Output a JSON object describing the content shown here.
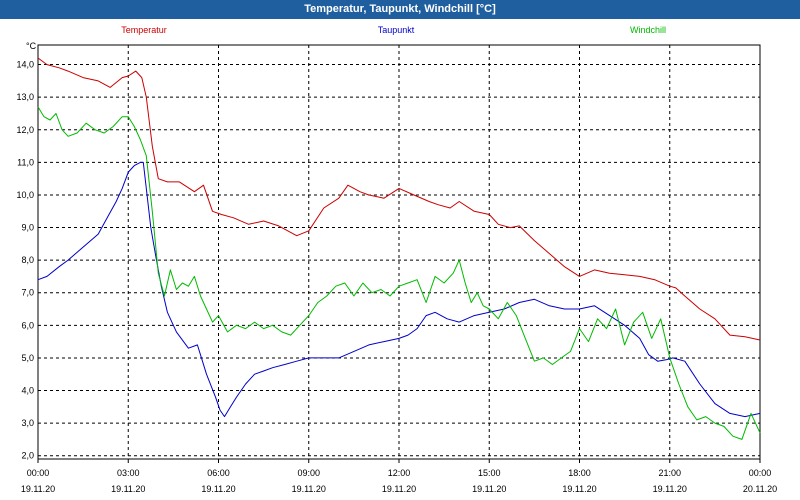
{
  "chart_data": {
    "type": "line",
    "title": "Temperatur, Taupunkt, Windchill [°C]",
    "ylabel": "°C",
    "ylim": [
      1.9,
      14.6
    ],
    "yticks": [
      2.0,
      3.0,
      4.0,
      5.0,
      6.0,
      7.0,
      8.0,
      9.0,
      10.0,
      11.0,
      12.0,
      13.0,
      14.0
    ],
    "ytick_labels": [
      "2,0",
      "3,0",
      "4,0",
      "5,0",
      "6,0",
      "7,0",
      "8,0",
      "9,0",
      "10,0",
      "11,0",
      "12,0",
      "13,0",
      "14,0"
    ],
    "xlim": [
      0,
      24
    ],
    "xticks": [
      {
        "x": 0,
        "time": "00:00",
        "date": "19.11.20"
      },
      {
        "x": 3,
        "time": "03:00",
        "date": "19.11.20"
      },
      {
        "x": 6,
        "time": "06:00",
        "date": "19.11.20"
      },
      {
        "x": 9,
        "time": "09:00",
        "date": "19.11.20"
      },
      {
        "x": 12,
        "time": "12:00",
        "date": "19.11.20"
      },
      {
        "x": 15,
        "time": "15:00",
        "date": "19.11.20"
      },
      {
        "x": 18,
        "time": "18:00",
        "date": "19.11.20"
      },
      {
        "x": 21,
        "time": "21:00",
        "date": "19.11.20"
      },
      {
        "x": 24,
        "time": "00:00",
        "date": "20.11.20"
      }
    ],
    "grid": true,
    "series": [
      {
        "name": "Temperatur",
        "color": "#cc0000",
        "x": [
          0,
          0.3,
          0.7,
          1,
          1.5,
          2,
          2.4,
          2.8,
          3,
          3.25,
          3.45,
          3.6,
          3.8,
          4,
          4.3,
          4.7,
          5.2,
          5.5,
          5.8,
          6.1,
          6.5,
          7,
          7.5,
          8,
          8.3,
          8.6,
          9,
          9.5,
          10,
          10.3,
          10.7,
          11,
          11.5,
          12,
          12.5,
          13,
          13.3,
          13.7,
          14,
          14.5,
          15,
          15.3,
          15.7,
          16,
          16.5,
          17,
          17.5,
          18,
          18.5,
          19,
          19.5,
          20,
          20.5,
          21,
          21.2,
          21.5,
          22,
          22.5,
          23,
          23.5,
          24
        ],
        "y": [
          14.2,
          14.0,
          13.9,
          13.8,
          13.6,
          13.5,
          13.3,
          13.6,
          13.65,
          13.8,
          13.6,
          13.0,
          11.5,
          10.5,
          10.4,
          10.4,
          10.1,
          10.3,
          9.5,
          9.4,
          9.3,
          9.1,
          9.2,
          9.05,
          8.9,
          8.75,
          8.9,
          9.6,
          9.9,
          10.3,
          10.1,
          10.0,
          9.9,
          10.2,
          10.0,
          9.8,
          9.7,
          9.6,
          9.8,
          9.5,
          9.4,
          9.1,
          9.0,
          9.05,
          8.6,
          8.2,
          7.8,
          7.5,
          7.7,
          7.6,
          7.55,
          7.5,
          7.4,
          7.2,
          7.15,
          6.9,
          6.5,
          6.2,
          5.7,
          5.65,
          5.55
        ]
      },
      {
        "name": "Taupunkt",
        "color": "#0000cc",
        "x": [
          0,
          0.3,
          0.7,
          1,
          1.5,
          2,
          2.3,
          2.6,
          2.8,
          3,
          3.2,
          3.4,
          3.5,
          3.6,
          3.75,
          3.9,
          4.1,
          4.3,
          4.6,
          5,
          5.3,
          5.6,
          5.9,
          6.05,
          6.2,
          6.4,
          6.6,
          6.9,
          7.2,
          7.5,
          7.8,
          8.2,
          8.6,
          9,
          9.5,
          10,
          10.5,
          11,
          11.5,
          12,
          12.3,
          12.6,
          12.9,
          13.2,
          13.6,
          14,
          14.5,
          15,
          15.5,
          16,
          16.5,
          17,
          17.5,
          18,
          18.5,
          19,
          19.5,
          20,
          20.3,
          20.6,
          20.9,
          21.1,
          21.5,
          22,
          22.5,
          23,
          23.5,
          24
        ],
        "y": [
          7.4,
          7.5,
          7.8,
          8.0,
          8.4,
          8.8,
          9.3,
          9.8,
          10.2,
          10.7,
          10.9,
          11.0,
          11.0,
          10.2,
          9.0,
          8.2,
          7.2,
          6.4,
          5.8,
          5.3,
          5.4,
          4.5,
          3.8,
          3.4,
          3.2,
          3.5,
          3.8,
          4.2,
          4.5,
          4.6,
          4.7,
          4.8,
          4.9,
          5.0,
          5.0,
          5.0,
          5.2,
          5.4,
          5.5,
          5.6,
          5.7,
          5.9,
          6.3,
          6.4,
          6.2,
          6.1,
          6.3,
          6.4,
          6.5,
          6.7,
          6.8,
          6.6,
          6.5,
          6.5,
          6.6,
          6.3,
          6.0,
          5.6,
          5.1,
          4.9,
          4.95,
          5.0,
          4.9,
          4.2,
          3.6,
          3.3,
          3.2,
          3.3
        ]
      },
      {
        "name": "Windchill",
        "color": "#00bb00",
        "x": [
          0,
          0.2,
          0.4,
          0.6,
          0.8,
          1,
          1.3,
          1.6,
          1.9,
          2.2,
          2.5,
          2.8,
          3,
          3.2,
          3.4,
          3.6,
          3.8,
          4,
          4.2,
          4.4,
          4.6,
          4.8,
          5,
          5.2,
          5.4,
          5.6,
          5.8,
          6,
          6.3,
          6.6,
          6.9,
          7.2,
          7.5,
          7.8,
          8.1,
          8.4,
          8.7,
          9,
          9.3,
          9.6,
          9.9,
          10.2,
          10.5,
          10.8,
          11.1,
          11.4,
          11.7,
          12,
          12.3,
          12.6,
          12.9,
          13.2,
          13.5,
          13.8,
          14,
          14.2,
          14.4,
          14.6,
          14.8,
          15,
          15.3,
          15.6,
          15.9,
          16.2,
          16.5,
          16.8,
          17.1,
          17.4,
          17.7,
          18,
          18.3,
          18.6,
          18.9,
          19.2,
          19.5,
          19.8,
          20.1,
          20.4,
          20.7,
          21,
          21.3,
          21.6,
          21.9,
          22.2,
          22.5,
          22.8,
          23.1,
          23.4,
          23.7,
          24
        ],
        "y": [
          12.7,
          12.4,
          12.3,
          12.5,
          12.0,
          11.8,
          11.9,
          12.2,
          12.0,
          11.9,
          12.1,
          12.4,
          12.4,
          12.1,
          11.7,
          11.2,
          9.5,
          7.6,
          6.9,
          7.7,
          7.1,
          7.3,
          7.2,
          7.5,
          6.9,
          6.5,
          6.1,
          6.3,
          5.8,
          6.0,
          5.9,
          6.1,
          5.9,
          6.0,
          5.8,
          5.7,
          6.0,
          6.3,
          6.7,
          6.9,
          7.2,
          7.3,
          6.9,
          7.3,
          7.0,
          7.1,
          6.9,
          7.2,
          7.3,
          7.4,
          6.7,
          7.5,
          7.3,
          7.6,
          8.0,
          7.3,
          6.7,
          7.0,
          6.6,
          6.5,
          6.2,
          6.7,
          6.3,
          5.6,
          4.9,
          5.0,
          4.8,
          5.0,
          5.2,
          5.9,
          5.5,
          6.2,
          5.9,
          6.5,
          5.4,
          6.1,
          6.4,
          5.6,
          6.2,
          5.0,
          4.2,
          3.5,
          3.1,
          3.2,
          3.0,
          2.9,
          2.6,
          2.5,
          3.3,
          2.7
        ]
      }
    ]
  }
}
